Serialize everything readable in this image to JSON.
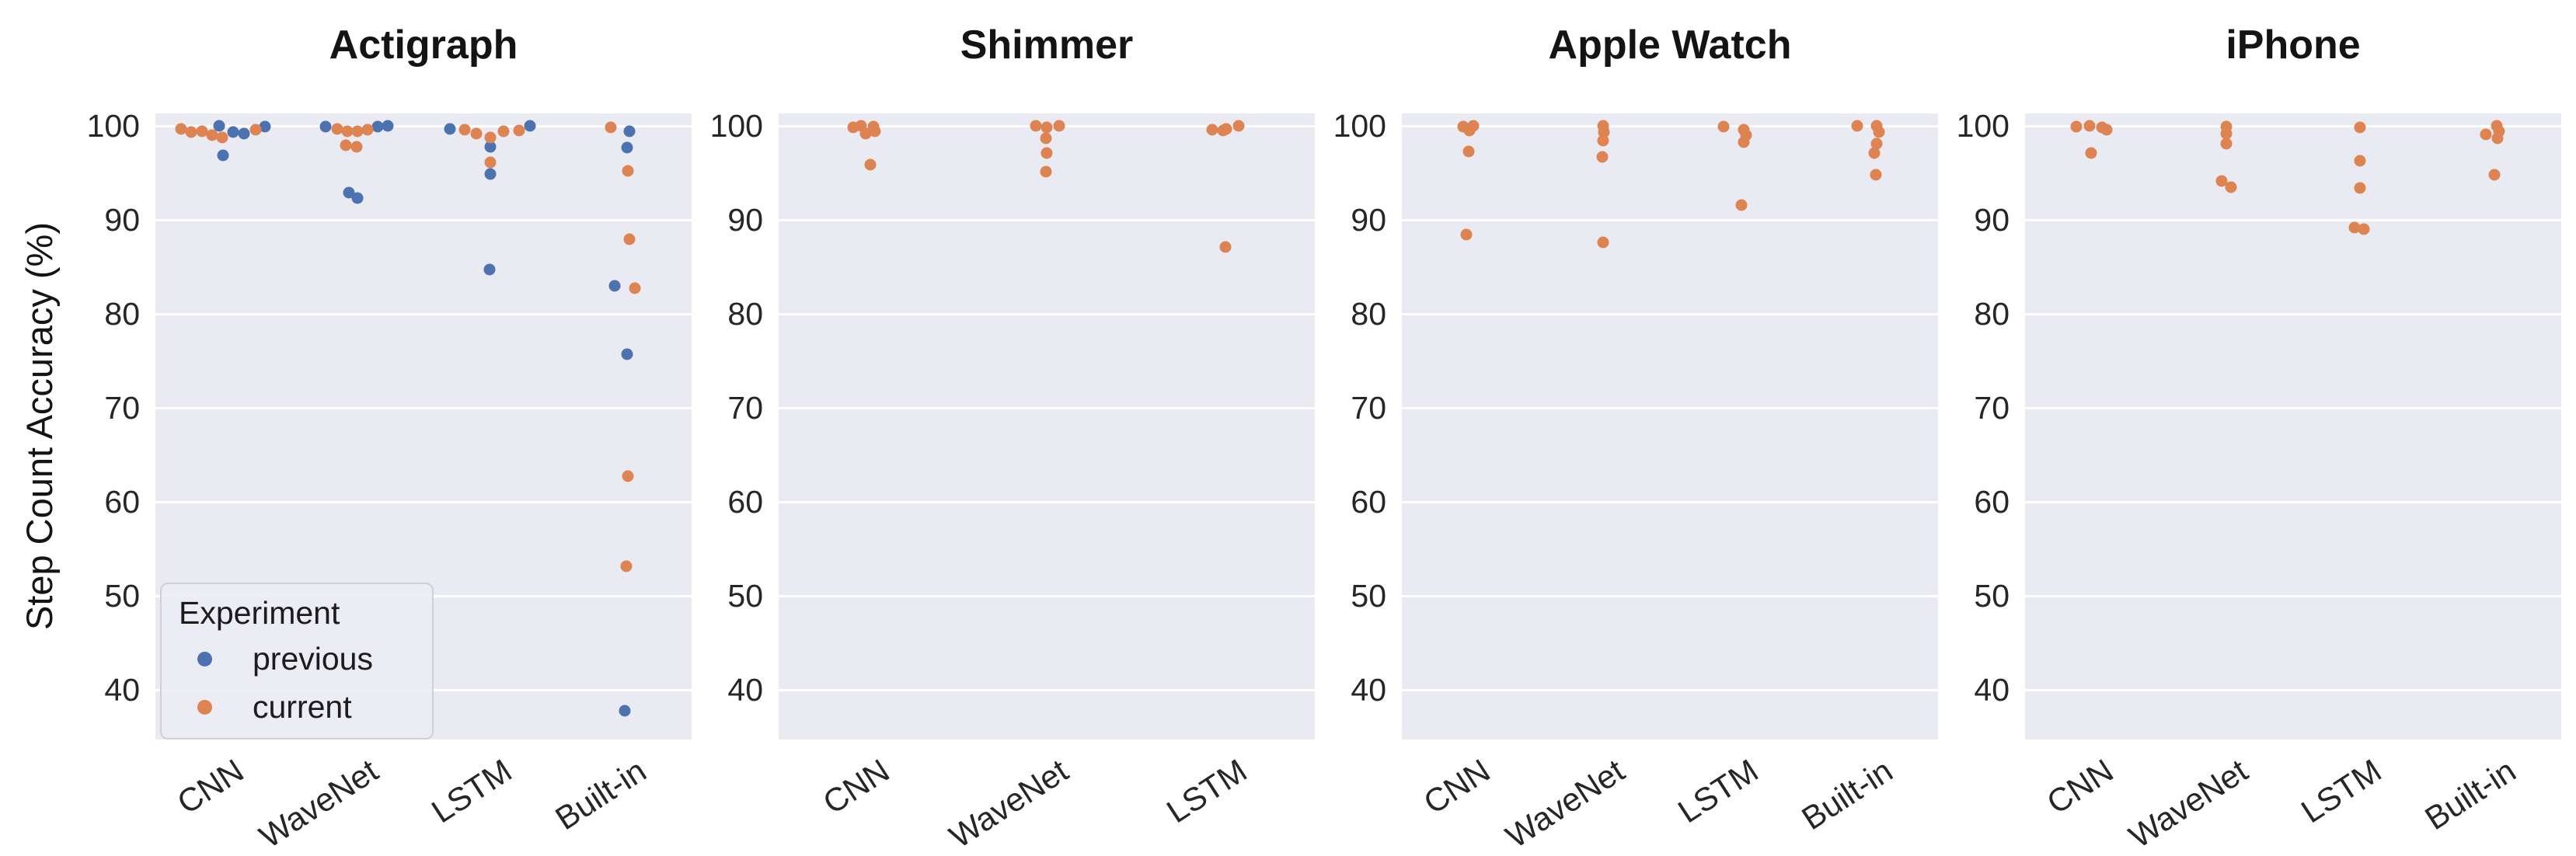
{
  "chart_data": {
    "type": "scatter",
    "subtype": "strip-plot",
    "title": "",
    "ylabel": "Step Count Accuracy (%)",
    "xlabel": "",
    "yticks": [
      100,
      90,
      80,
      70,
      60,
      50,
      40
    ],
    "ylim": [
      34.5,
      101.5
    ],
    "grid": "horizontal-white-on-gray",
    "background_color": "#EAEAF2",
    "legend": {
      "title": "Experiment",
      "position": "lower-left-first-panel",
      "entries": [
        {
          "label": "previous",
          "color": "#4C72B0"
        },
        {
          "label": "current",
          "color": "#DD8452"
        }
      ]
    },
    "panels": [
      {
        "title": "Actigraph",
        "categories": [
          "CNN",
          "WaveNet",
          "LSTM",
          "Built-in"
        ],
        "series": [
          {
            "name": "previous",
            "color": "#4C72B0",
            "points": [
              [
                0,
                100,
                -0.07
              ],
              [
                0,
                99.9,
                0.94
              ],
              [
                0,
                99.3,
                0.24
              ],
              [
                0,
                99.2,
                0.47
              ],
              [
                0,
                96.9,
                0.01
              ],
              [
                1,
                100,
                0.7
              ],
              [
                1,
                99.9,
                -0.69
              ],
              [
                1,
                99.9,
                0.47
              ],
              [
                1,
                92.9,
                -0.17
              ],
              [
                1,
                92.3,
                0.03
              ],
              [
                2,
                100,
                0.88
              ],
              [
                2,
                99.7,
                -0.9
              ],
              [
                2,
                97.8,
                0.0
              ],
              [
                2,
                94.9,
                0.0
              ],
              [
                2,
                84.7,
                -0.02
              ],
              [
                3,
                99.4,
                0.1
              ],
              [
                3,
                97.7,
                0.05
              ],
              [
                3,
                83.0,
                -0.22
              ],
              [
                3,
                75.7,
                0.06
              ],
              [
                3,
                37.8,
                0.0
              ]
            ]
          },
          {
            "name": "current",
            "color": "#DD8452",
            "points": [
              [
                0,
                99.7,
                -0.91
              ],
              [
                0,
                99.6,
                0.73
              ],
              [
                0,
                99.4,
                -0.45
              ],
              [
                0,
                99.3,
                -0.69
              ],
              [
                0,
                99.0,
                -0.22
              ],
              [
                0,
                98.8,
                -0.01
              ],
              [
                1,
                99.7,
                -0.43
              ],
              [
                1,
                99.6,
                0.25
              ],
              [
                1,
                99.4,
                -0.21
              ],
              [
                1,
                99.4,
                0.02
              ],
              [
                1,
                97.9,
                -0.23
              ],
              [
                1,
                97.8,
                0.0
              ],
              [
                2,
                99.6,
                -0.58
              ],
              [
                2,
                99.5,
                0.64
              ],
              [
                2,
                99.4,
                0.29
              ],
              [
                2,
                99.2,
                -0.31
              ],
              [
                2,
                98.8,
                0.0
              ],
              [
                2,
                96.1,
                0.0
              ],
              [
                3,
                99.8,
                -0.3
              ],
              [
                3,
                95.2,
                0.08
              ],
              [
                3,
                87.9,
                0.1
              ],
              [
                3,
                82.7,
                0.22
              ],
              [
                3,
                62.7,
                0.08
              ],
              [
                3,
                53.1,
                0.04
              ]
            ]
          }
        ]
      },
      {
        "title": "Shimmer",
        "categories": [
          "CNN",
          "WaveNet",
          "LSTM"
        ],
        "series": [
          {
            "name": "current",
            "color": "#DD8452",
            "points": [
              [
                0,
                100,
                -0.15
              ],
              [
                0,
                99.9,
                0.12
              ],
              [
                0,
                99.8,
                -0.32
              ],
              [
                0,
                99.4,
                0.15
              ],
              [
                0,
                99.2,
                -0.05
              ],
              [
                0,
                95.9,
                0.05
              ],
              [
                1,
                100,
                -0.25
              ],
              [
                1,
                100,
                0.28
              ],
              [
                1,
                99.8,
                0.0
              ],
              [
                1,
                98.7,
                -0.02
              ],
              [
                1,
                97.1,
                0.0
              ],
              [
                1,
                95.1,
                -0.02
              ],
              [
                2,
                100,
                0.3
              ],
              [
                2,
                99.7,
                0.02
              ],
              [
                2,
                99.6,
                -0.3
              ],
              [
                2,
                99.5,
                -0.05
              ],
              [
                2,
                87.1,
                0.0
              ]
            ]
          }
        ]
      },
      {
        "title": "Apple Watch",
        "categories": [
          "CNN",
          "WaveNet",
          "LSTM",
          "Built-in"
        ],
        "series": [
          {
            "name": "current",
            "color": "#DD8452",
            "points": [
              [
                0,
                100,
                0.1
              ],
              [
                0,
                99.9,
                -0.12
              ],
              [
                0,
                99.5,
                0.02
              ],
              [
                0,
                97.3,
                0.0
              ],
              [
                0,
                88.4,
                -0.05
              ],
              [
                1,
                100,
                0.0
              ],
              [
                1,
                99.3,
                0.02
              ],
              [
                1,
                98.4,
                0.0
              ],
              [
                1,
                96.7,
                -0.02
              ],
              [
                1,
                87.6,
                0.0
              ],
              [
                2,
                99.9,
                -0.3
              ],
              [
                2,
                99.6,
                0.15
              ],
              [
                2,
                99.0,
                0.2
              ],
              [
                2,
                98.3,
                0.15
              ],
              [
                2,
                91.6,
                0.1
              ],
              [
                3,
                100,
                -0.3
              ],
              [
                3,
                100,
                0.12
              ],
              [
                3,
                99.3,
                0.18
              ],
              [
                3,
                98.1,
                0.12
              ],
              [
                3,
                97.1,
                0.08
              ],
              [
                3,
                94.8,
                0.1
              ]
            ]
          }
        ]
      },
      {
        "title": "iPhone",
        "categories": [
          "CNN",
          "WaveNet",
          "LSTM",
          "Built-in"
        ],
        "series": [
          {
            "name": "current",
            "color": "#DD8452",
            "points": [
              [
                0,
                100,
                -0.05
              ],
              [
                0,
                99.9,
                -0.35
              ],
              [
                0,
                99.8,
                0.22
              ],
              [
                0,
                99.6,
                0.32
              ],
              [
                0,
                97.1,
                -0.02
              ],
              [
                1,
                99.9,
                0.0
              ],
              [
                1,
                99.2,
                0.0
              ],
              [
                1,
                98.1,
                0.0
              ],
              [
                1,
                94.1,
                -0.1
              ],
              [
                1,
                93.5,
                0.1
              ],
              [
                2,
                99.8,
                0.0
              ],
              [
                2,
                96.3,
                0.0
              ],
              [
                2,
                93.4,
                0.0
              ],
              [
                2,
                89.2,
                -0.12
              ],
              [
                2,
                89.0,
                0.08
              ],
              [
                3,
                100,
                0.05
              ],
              [
                3,
                99.4,
                0.1
              ],
              [
                3,
                99.1,
                -0.18
              ],
              [
                3,
                98.7,
                0.08
              ],
              [
                3,
                94.8,
                0.0
              ]
            ]
          }
        ]
      }
    ]
  }
}
